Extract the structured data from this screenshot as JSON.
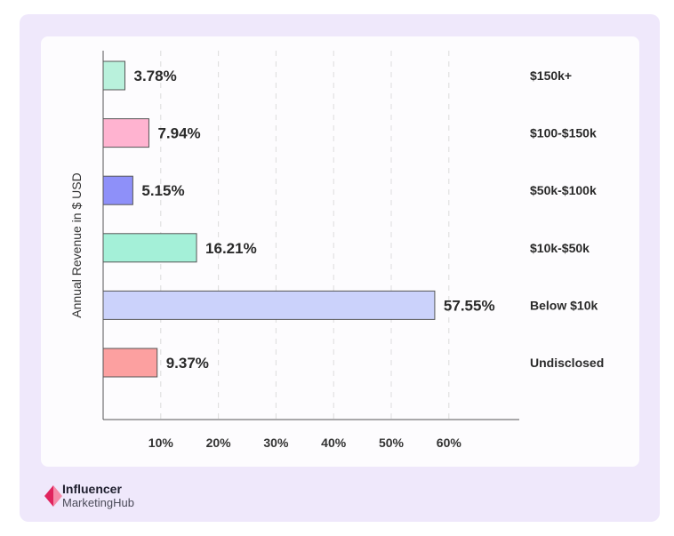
{
  "chart_data": {
    "type": "bar",
    "orientation": "horizontal",
    "ylabel": "Annual Revenue in $ USD",
    "xlabel": "",
    "xlim": [
      0,
      72
    ],
    "x_ticks": [
      "10%",
      "20%",
      "30%",
      "40%",
      "50%",
      "60%"
    ],
    "x_tick_values": [
      10,
      20,
      30,
      40,
      50,
      60
    ],
    "grid": "vertical dashed",
    "bars": [
      {
        "category": "$150k+",
        "value": 3.78,
        "label": "3.78%",
        "color": "#b9f1dc"
      },
      {
        "category": "$100-$150k",
        "value": 7.94,
        "label": "7.94%",
        "color": "#ffb3d0"
      },
      {
        "category": "$50k-$100k",
        "value": 5.15,
        "label": "5.15%",
        "color": "#8e90f9"
      },
      {
        "category": "$10k-$50k",
        "value": 16.21,
        "label": "16.21%",
        "color": "#a4f0d8"
      },
      {
        "category": "Below $10k",
        "value": 57.55,
        "label": "57.55%",
        "color": "#cbd2fb"
      },
      {
        "category": "Undisclosed",
        "value": 9.37,
        "label": "9.37%",
        "color": "#fca0a0"
      }
    ]
  },
  "brand": {
    "line1": "Influencer",
    "line2": "MarketingHub",
    "colors": {
      "mark_dark": "#e0245e",
      "mark_light": "#f58aa8",
      "text1": "#1f1f2e",
      "text2": "#4a4a58"
    }
  },
  "colors": {
    "frame_bg": "#efe8fb",
    "card_bg": "#fdfcfe",
    "axis": "#555555",
    "grid": "#dddddd",
    "bar_stroke": "#555555"
  }
}
